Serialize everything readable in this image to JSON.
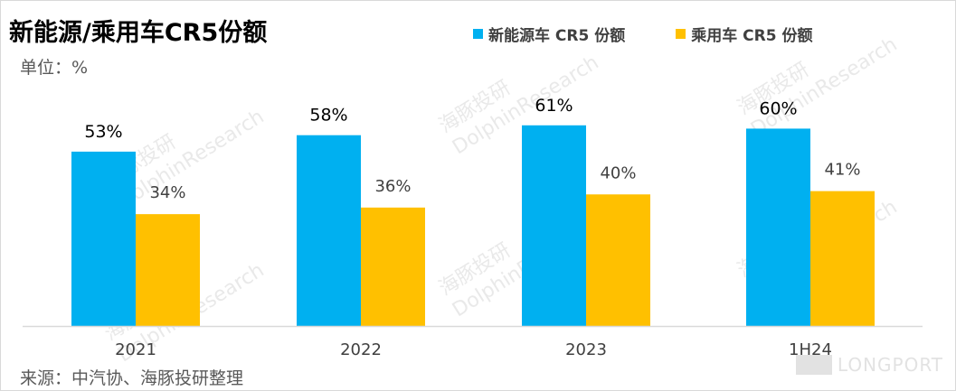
{
  "title": "新能源/乘用车CR5份额",
  "unit_label": "单位：%",
  "source_label": "来源：中汽协、海豚投研整理",
  "watermark": {
    "cn": "海豚投研",
    "en": "DolphinResearch",
    "brand": "LONGPORT"
  },
  "colors": {
    "series1": "#00B0F0",
    "series2": "#FFC000",
    "axis": "#D9D9D9",
    "label": "#000000",
    "tick": "#404040"
  },
  "chart_data": {
    "type": "bar",
    "title": "新能源/乘用车CR5份额",
    "categories": [
      "2021",
      "2022",
      "2023",
      "1H24"
    ],
    "series": [
      {
        "name": "新能源车 CR5 份额",
        "values": [
          53,
          58,
          61,
          60
        ],
        "labels": [
          "53%",
          "58%",
          "61%",
          "60%"
        ]
      },
      {
        "name": "乘用车 CR5 份额",
        "values": [
          34,
          36,
          40,
          41
        ],
        "labels": [
          "34%",
          "36%",
          "40%",
          "41%"
        ]
      }
    ],
    "ylim": [
      0,
      70
    ],
    "grid": false,
    "legend_position": "top-right"
  }
}
